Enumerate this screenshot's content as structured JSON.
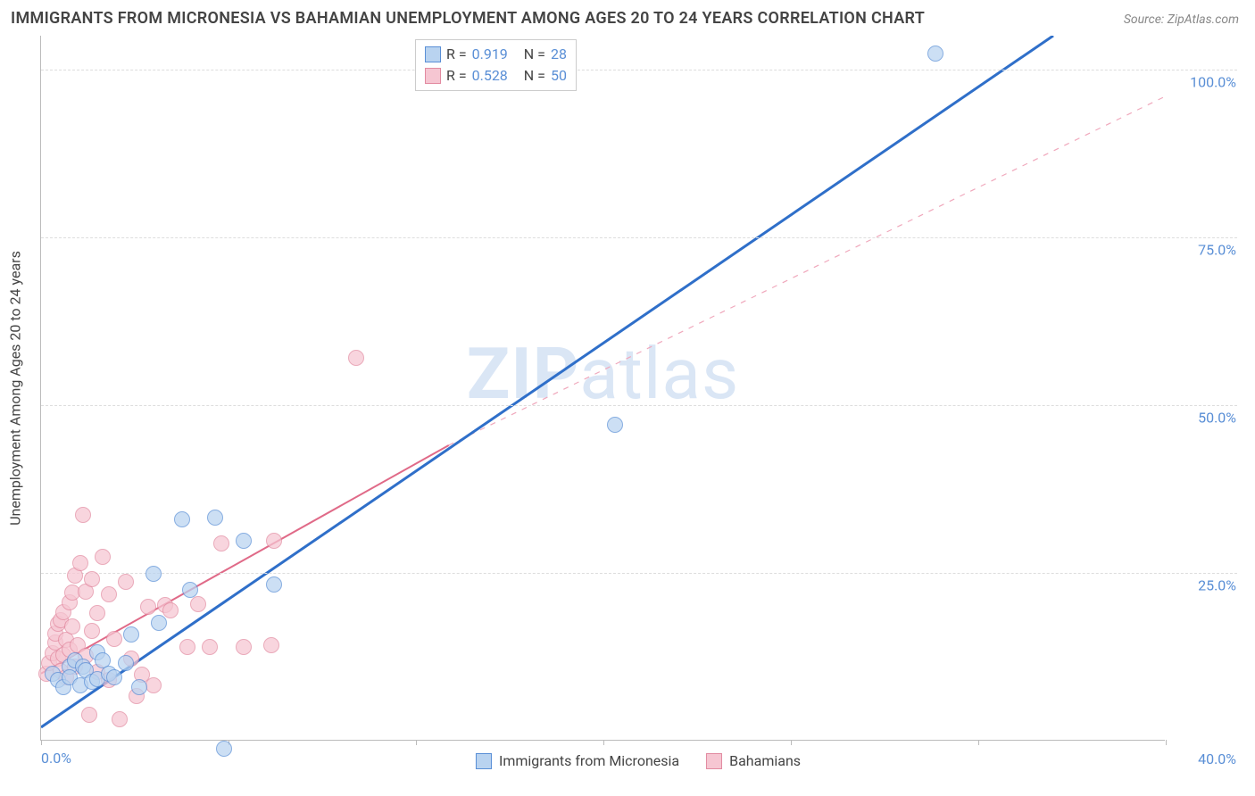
{
  "title": "IMMIGRANTS FROM MICRONESIA VS BAHAMIAN UNEMPLOYMENT AMONG AGES 20 TO 24 YEARS CORRELATION CHART",
  "source": "Source: ZipAtlas.com",
  "watermark_bold": "ZIP",
  "watermark_rest": "atlas",
  "y_axis_title": "Unemployment Among Ages 20 to 24 years",
  "chart": {
    "type": "scatter",
    "background_color": "#ffffff",
    "grid_color": "#dddddd",
    "axis_color": "#bbbbbb",
    "text_color": "#444444",
    "value_color": "#5a8fd6",
    "xlim": [
      0,
      40
    ],
    "ylim": [
      0,
      105
    ],
    "x_tick_positions": [
      0,
      6.67,
      13.33,
      20,
      26.67,
      33.33,
      40
    ],
    "x_origin_label": "0.0%",
    "x_max_label": "40.0%",
    "y_ticks": [
      25,
      50,
      75,
      100
    ],
    "y_tick_labels": [
      "25.0%",
      "50.0%",
      "75.0%",
      "100.0%"
    ],
    "series": [
      {
        "key": "micronesia",
        "label": "Immigrants from Micronesia",
        "color_fill": "#b9d3f0",
        "color_stroke": "#5a8fd6",
        "marker_radius": 9,
        "marker_opacity": 0.72,
        "r": "0.919",
        "n": "28",
        "trend_solid": {
          "x1": 0,
          "y1": 2,
          "x2": 36,
          "y2": 105
        },
        "trend_dashed": null,
        "points": [
          [
            0.4,
            10
          ],
          [
            0.6,
            9
          ],
          [
            0.8,
            8
          ],
          [
            1.0,
            11
          ],
          [
            1.0,
            9.5
          ],
          [
            1.2,
            12
          ],
          [
            1.4,
            8.2
          ],
          [
            1.5,
            11
          ],
          [
            1.6,
            10.5
          ],
          [
            1.8,
            8.8
          ],
          [
            2.0,
            9.2
          ],
          [
            2.0,
            13.2
          ],
          [
            2.2,
            12
          ],
          [
            2.4,
            10
          ],
          [
            2.6,
            9.4
          ],
          [
            3.0,
            11.6
          ],
          [
            3.2,
            15.8
          ],
          [
            3.5,
            8
          ],
          [
            4.0,
            24.8
          ],
          [
            4.2,
            17.5
          ],
          [
            5.0,
            33
          ],
          [
            5.3,
            22.5
          ],
          [
            6.2,
            33.2
          ],
          [
            6.5,
            -1.2
          ],
          [
            7.2,
            29.8
          ],
          [
            8.3,
            23.2
          ],
          [
            20.4,
            47
          ],
          [
            31.8,
            102.4
          ]
        ]
      },
      {
        "key": "bahamians",
        "label": "Bahamians",
        "color_fill": "#f6c6d2",
        "color_stroke": "#e28aa0",
        "marker_radius": 9,
        "marker_opacity": 0.72,
        "r": "0.528",
        "n": "50",
        "trend_solid": {
          "x1": 0,
          "y1": 10,
          "x2": 14.5,
          "y2": 44
        },
        "trend_dashed": {
          "x1": 14.5,
          "y1": 44,
          "x2": 40,
          "y2": 96
        },
        "points": [
          [
            0.2,
            10
          ],
          [
            0.3,
            11.5
          ],
          [
            0.4,
            13
          ],
          [
            0.5,
            14.6
          ],
          [
            0.5,
            16
          ],
          [
            0.6,
            12.2
          ],
          [
            0.6,
            17.4
          ],
          [
            0.7,
            10.4
          ],
          [
            0.7,
            18
          ],
          [
            0.8,
            12.8
          ],
          [
            0.8,
            19.2
          ],
          [
            0.9,
            9.4
          ],
          [
            0.9,
            15
          ],
          [
            1.0,
            20.6
          ],
          [
            1.0,
            13.6
          ],
          [
            1.1,
            17
          ],
          [
            1.1,
            22
          ],
          [
            1.2,
            11
          ],
          [
            1.2,
            24.6
          ],
          [
            1.3,
            14.2
          ],
          [
            1.4,
            26.4
          ],
          [
            1.5,
            33.6
          ],
          [
            1.6,
            12.6
          ],
          [
            1.6,
            22.2
          ],
          [
            1.7,
            3.8
          ],
          [
            1.8,
            16.4
          ],
          [
            1.8,
            24
          ],
          [
            2.0,
            10.2
          ],
          [
            2.0,
            19
          ],
          [
            2.2,
            27.4
          ],
          [
            2.4,
            9
          ],
          [
            2.4,
            21.8
          ],
          [
            2.6,
            15.2
          ],
          [
            2.8,
            3.2
          ],
          [
            3.0,
            23.6
          ],
          [
            3.2,
            12.2
          ],
          [
            3.4,
            6.6
          ],
          [
            3.6,
            9.8
          ],
          [
            3.8,
            20
          ],
          [
            4.0,
            8.2
          ],
          [
            4.4,
            20.2
          ],
          [
            4.6,
            19.4
          ],
          [
            5.2,
            14
          ],
          [
            5.6,
            20.4
          ],
          [
            6.0,
            14
          ],
          [
            6.4,
            29.4
          ],
          [
            7.2,
            14
          ],
          [
            8.2,
            14.2
          ],
          [
            8.3,
            29.8
          ],
          [
            11.2,
            57
          ]
        ]
      }
    ],
    "legend_top": {
      "r_label": "R  =",
      "n_label": "N  ="
    }
  }
}
